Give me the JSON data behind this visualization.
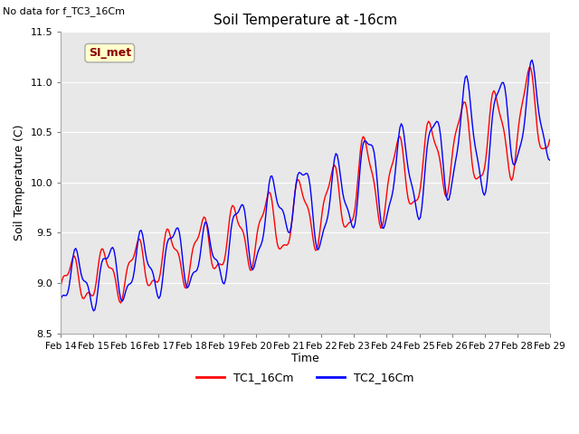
{
  "title": "Soil Temperature at -16cm",
  "ylabel": "Soil Temperature (C)",
  "xlabel": "Time",
  "note": "No data for f_TC3_16Cm",
  "legend_box_label": "SI_met",
  "ylim": [
    8.5,
    11.5
  ],
  "yticks": [
    8.5,
    9.0,
    9.5,
    10.0,
    10.5,
    11.0,
    11.5
  ],
  "xtick_labels": [
    "Feb 14",
    "Feb 15",
    "Feb 16",
    "Feb 17",
    "Feb 18",
    "Feb 19",
    "Feb 20",
    "Feb 21",
    "Feb 22",
    "Feb 23",
    "Feb 24",
    "Feb 25",
    "Feb 26",
    "Feb 27",
    "Feb 28",
    "Feb 29"
  ],
  "bg_color": "#e8e8e8",
  "grid_color": "#ffffff",
  "tc1_color": "red",
  "tc2_color": "blue",
  "tc1_label": "TC1_16Cm",
  "tc2_label": "TC2_16Cm",
  "figsize": [
    6.4,
    4.8
  ],
  "dpi": 100
}
